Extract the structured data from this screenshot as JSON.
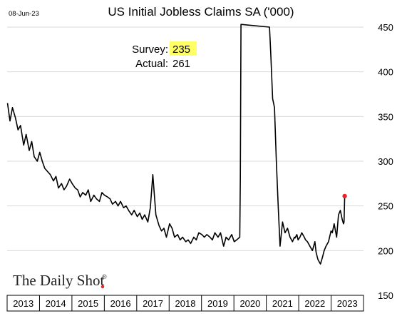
{
  "chart_data": {
    "type": "line",
    "date_label": "08-Jun-23",
    "title": "US Initial Jobless Claims SA ('000)",
    "annotation": {
      "survey_label": "Survey:",
      "survey_value": "235",
      "actual_label": "Actual:",
      "actual_value": "261"
    },
    "watermark": "The Daily Shot",
    "watermark_mark": "®",
    "ylim": [
      150,
      450
    ],
    "y_ticks": [
      "150",
      "200",
      "250",
      "300",
      "350",
      "400",
      "450"
    ],
    "x_ticks": [
      "2013",
      "2014",
      "2015",
      "2016",
      "2017",
      "2018",
      "2019",
      "2020",
      "2021",
      "2022",
      "2023"
    ],
    "grid": true,
    "colors": {
      "line": "#000000",
      "last_point": "#e8262a",
      "highlight": "#ffff66",
      "grid": "#d9d9d9"
    },
    "series": [
      {
        "x": [
          "2013-01-05",
          "2013-02-02",
          "2013-03-02",
          "2013-04-06",
          "2013-05-04",
          "2013-06-01",
          "2013-07-06",
          "2013-08-03",
          "2013-09-07",
          "2013-10-05",
          "2013-11-02",
          "2013-12-07",
          "2014-01-04",
          "2014-02-01",
          "2014-03-01",
          "2014-04-05",
          "2014-05-03",
          "2014-06-07",
          "2014-07-05",
          "2014-08-02",
          "2014-09-06",
          "2014-10-04",
          "2014-11-01",
          "2014-12-06",
          "2015-01-03",
          "2015-02-07",
          "2015-03-07",
          "2015-04-04",
          "2015-05-02",
          "2015-06-06",
          "2015-07-04",
          "2015-08-01",
          "2015-09-05",
          "2015-10-03",
          "2015-11-07",
          "2015-12-05",
          "2016-01-02",
          "2016-02-06",
          "2016-03-05",
          "2016-04-02",
          "2016-05-07",
          "2016-06-04",
          "2016-07-02",
          "2016-08-06",
          "2016-09-03",
          "2016-10-01",
          "2016-11-05",
          "2016-12-03",
          "2017-01-07",
          "2017-02-04",
          "2017-03-04",
          "2017-04-01",
          "2017-05-06",
          "2017-06-03",
          "2017-07-01",
          "2017-08-05",
          "2017-09-09",
          "2017-10-07",
          "2017-11-04",
          "2017-12-02",
          "2018-01-06",
          "2018-02-03",
          "2018-03-03",
          "2018-04-07",
          "2018-05-05",
          "2018-06-02",
          "2018-07-07",
          "2018-08-04",
          "2018-09-01",
          "2018-10-06",
          "2018-11-03",
          "2018-12-01",
          "2019-01-05",
          "2019-02-02",
          "2019-03-02",
          "2019-04-06",
          "2019-05-04",
          "2019-06-01",
          "2019-07-06",
          "2019-08-03",
          "2019-09-07",
          "2019-10-05",
          "2019-11-02",
          "2019-12-07",
          "2020-01-04",
          "2020-02-01",
          "2020-03-07",
          "2020-03-14",
          "2020-03-21",
          "2021-02-06",
          "2021-02-20",
          "2021-03-13",
          "2021-04-03",
          "2021-04-24",
          "2021-05-15",
          "2021-06-05",
          "2021-07-03",
          "2021-07-31",
          "2021-08-28",
          "2021-09-25",
          "2021-10-23",
          "2021-11-13",
          "2021-11-20",
          "2021-12-11",
          "2021-12-25",
          "2022-01-15",
          "2022-02-05",
          "2022-03-05",
          "2022-03-19",
          "2022-04-09",
          "2022-05-07",
          "2022-06-04",
          "2022-07-02",
          "2022-07-16",
          "2022-08-06",
          "2022-09-03",
          "2022-09-24",
          "2022-10-15",
          "2022-11-05",
          "2022-12-03",
          "2022-12-31",
          "2023-01-14",
          "2023-02-04",
          "2023-03-04",
          "2023-03-25",
          "2023-04-15",
          "2023-05-06",
          "2023-05-20",
          "2023-05-27",
          "2023-06-03"
        ],
        "y": [
          365,
          345,
          360,
          348,
          335,
          340,
          318,
          330,
          312,
          322,
          305,
          300,
          310,
          300,
          292,
          288,
          285,
          278,
          283,
          270,
          275,
          268,
          272,
          280,
          275,
          270,
          268,
          260,
          265,
          262,
          268,
          255,
          262,
          258,
          255,
          265,
          262,
          260,
          258,
          252,
          255,
          250,
          255,
          248,
          250,
          245,
          240,
          245,
          238,
          242,
          235,
          240,
          232,
          248,
          285,
          240,
          228,
          222,
          225,
          215,
          230,
          225,
          215,
          218,
          212,
          215,
          210,
          212,
          208,
          215,
          212,
          220,
          218,
          215,
          218,
          215,
          212,
          220,
          215,
          220,
          205,
          215,
          212,
          218,
          210,
          212,
          215,
          282,
          455,
          450,
          420,
          370,
          360,
          300,
          250,
          205,
          232,
          220,
          225,
          215,
          210,
          215,
          214,
          218,
          212,
          215,
          220,
          215,
          212,
          210,
          205,
          200,
          210,
          198,
          190,
          185,
          192,
          200,
          205,
          210,
          222,
          220,
          230,
          215,
          240,
          245,
          235,
          230,
          232,
          261
        ]
      }
    ]
  }
}
